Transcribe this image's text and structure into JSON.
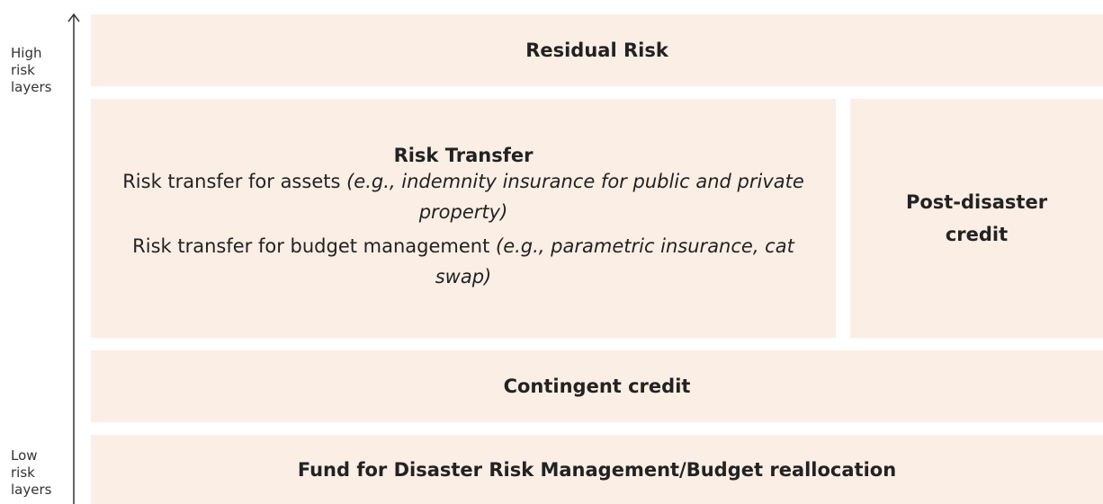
{
  "axis": {
    "top_label": "High risk layers",
    "bottom_label": "Low risk layers"
  },
  "layers": [
    {
      "title": "Residual Risk"
    },
    {
      "title": "Risk Transfer",
      "lines": [
        {
          "text": "Risk transfer for assets",
          "example": "(e.g., indemnity insurance for public and private property)"
        },
        {
          "text": "Risk transfer for budget management",
          "example": "(e.g., parametric insurance, cat swap)"
        }
      ]
    },
    {
      "title": "Post-disaster credit"
    },
    {
      "title": "Contingent credit"
    },
    {
      "title": "Fund for Disaster Risk Management/Budget reallocation"
    }
  ]
}
